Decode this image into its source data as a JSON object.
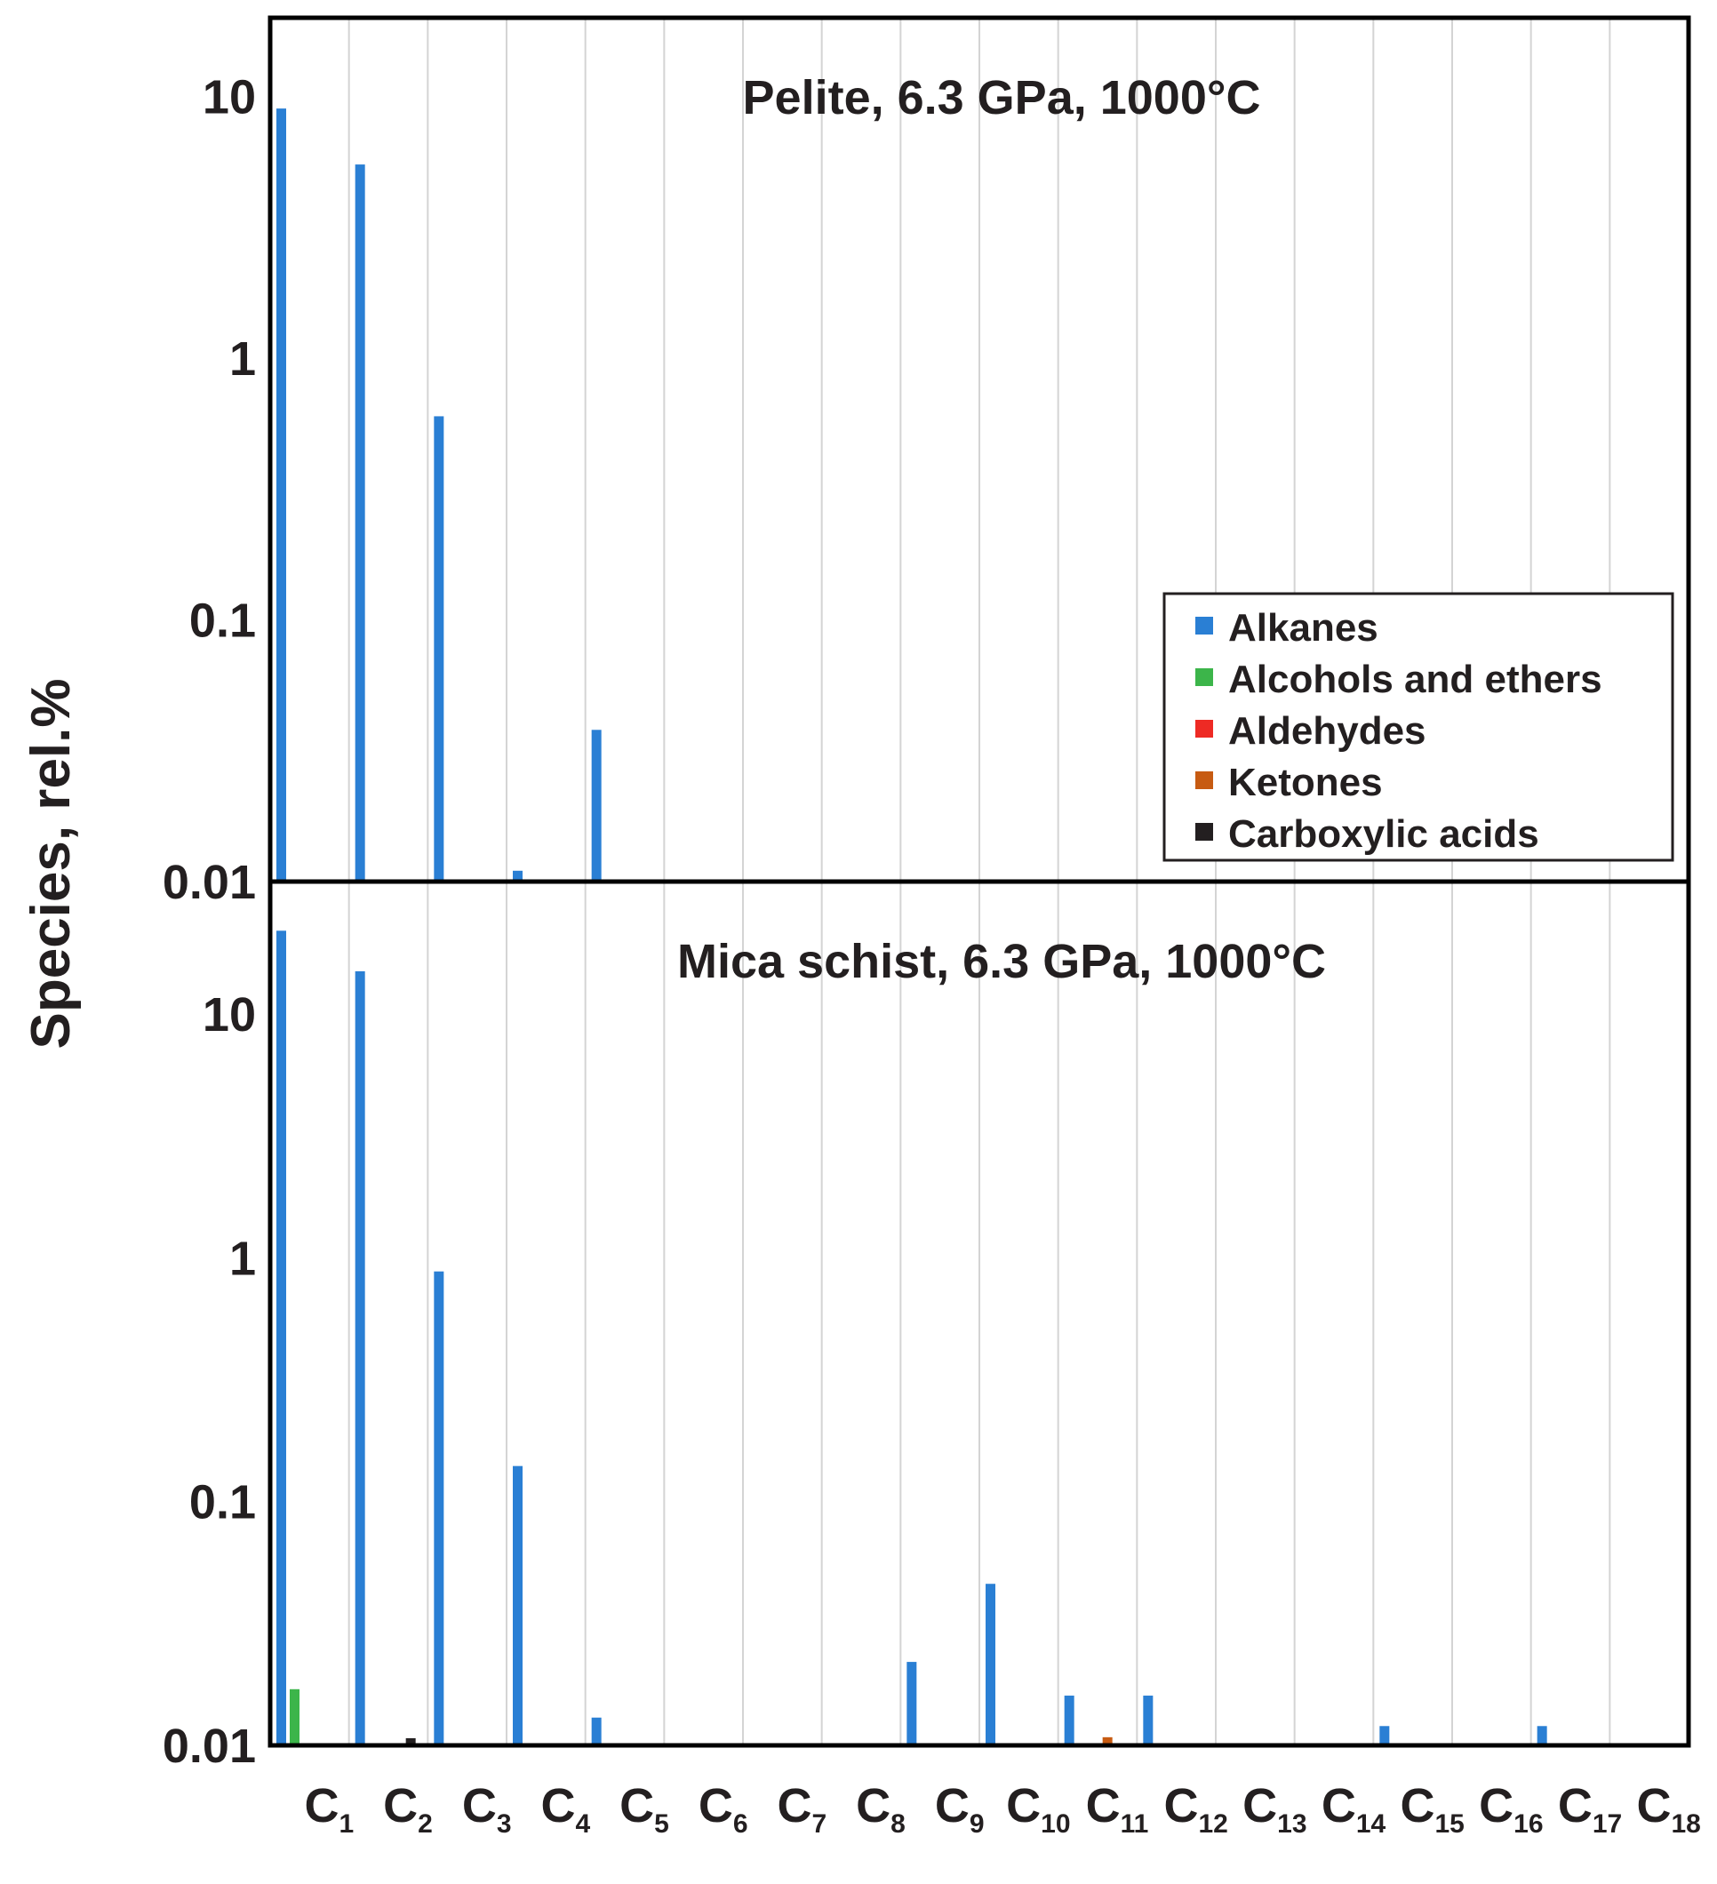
{
  "chart_data": {
    "type": "bar",
    "scale": "log",
    "ylabel": "Species, rel.%",
    "categories": [
      "C1",
      "C2",
      "C3",
      "C4",
      "C5",
      "C6",
      "C7",
      "C8",
      "C9",
      "C10",
      "C11",
      "C12",
      "C13",
      "C14",
      "C15",
      "C16",
      "C17",
      "C18"
    ],
    "category_labels": [
      {
        "main": "C",
        "sub": "1"
      },
      {
        "main": "C",
        "sub": "2"
      },
      {
        "main": "C",
        "sub": "3"
      },
      {
        "main": "C",
        "sub": "4"
      },
      {
        "main": "C",
        "sub": "5"
      },
      {
        "main": "C",
        "sub": "6"
      },
      {
        "main": "C",
        "sub": "7"
      },
      {
        "main": "C",
        "sub": "8"
      },
      {
        "main": "C",
        "sub": "9"
      },
      {
        "main": "C",
        "sub": "10"
      },
      {
        "main": "C",
        "sub": "11"
      },
      {
        "main": "C",
        "sub": "12"
      },
      {
        "main": "C",
        "sub": "13"
      },
      {
        "main": "C",
        "sub": "14"
      },
      {
        "main": "C",
        "sub": "15"
      },
      {
        "main": "C",
        "sub": "16"
      },
      {
        "main": "C",
        "sub": "17"
      },
      {
        "main": "C",
        "sub": "18"
      }
    ],
    "legend": {
      "position": "right",
      "entries": [
        {
          "name": "Alkanes",
          "color": "#2a7fd4"
        },
        {
          "name": "Alcohols and ethers",
          "color": "#3cb54a"
        },
        {
          "name": "Aldehydes",
          "color": "#ee2a24"
        },
        {
          "name": "Ketones",
          "color": "#c75b12"
        },
        {
          "name": "Carboxylic acids",
          "color": "#231f20"
        }
      ]
    },
    "panels": [
      {
        "title": "Pelite, 6.3 GPa, 1000°C",
        "ylim": [
          0.01,
          20
        ],
        "yticks": [
          {
            "value": 10,
            "label": "10"
          },
          {
            "value": 1,
            "label": "1"
          },
          {
            "value": 0.1,
            "label": "0.1"
          },
          {
            "value": 0.01,
            "label": "0.01"
          }
        ],
        "series": [
          {
            "name": "Alkanes",
            "values": [
              9,
              5.5,
              0.6,
              0.011,
              0.038,
              null,
              null,
              null,
              null,
              null,
              null,
              null,
              null,
              null,
              null,
              null,
              null,
              null
            ]
          }
        ]
      },
      {
        "title": "Mica schist, 6.3 GPa, 1000°C",
        "ylim": [
          0.01,
          35
        ],
        "yticks": [
          {
            "value": 10,
            "label": "10"
          },
          {
            "value": 1,
            "label": "1"
          },
          {
            "value": 0.1,
            "label": "0.1"
          },
          {
            "value": 0.01,
            "label": "0.01"
          }
        ],
        "series": [
          {
            "name": "Alkanes",
            "values": [
              22,
              15,
              0.88,
              0.14,
              0.013,
              null,
              null,
              null,
              0.022,
              0.046,
              0.016,
              0.016,
              null,
              null,
              0.012,
              null,
              0.012,
              null
            ]
          },
          {
            "name": "Alcohols and ethers",
            "values": [
              0.017,
              null,
              null,
              null,
              null,
              null,
              null,
              null,
              null,
              null,
              null,
              null,
              null,
              null,
              null,
              null,
              null,
              null
            ]
          },
          {
            "name": "Ketones",
            "values": [
              null,
              null,
              null,
              null,
              null,
              null,
              null,
              null,
              null,
              null,
              0.0108,
              null,
              null,
              null,
              null,
              null,
              null,
              null
            ]
          },
          {
            "name": "Carboxylic acids",
            "values": [
              null,
              0.0107,
              null,
              null,
              null,
              null,
              null,
              null,
              null,
              null,
              null,
              null,
              null,
              null,
              null,
              null,
              null,
              null
            ]
          }
        ]
      }
    ]
  }
}
